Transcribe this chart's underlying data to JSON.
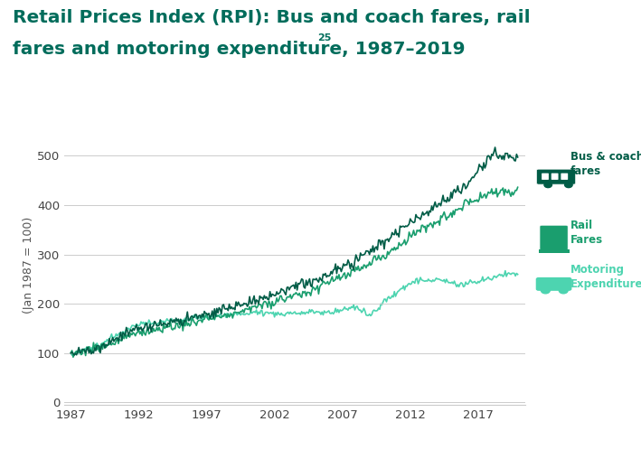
{
  "title_line1": "Retail Prices Index (RPI): Bus and coach fares, rail",
  "title_line2": "fares and motoring expenditure, 1987–2019",
  "title_superscript": "25",
  "title_color": "#006c5b",
  "title_fontsize": 14.5,
  "ylabel": "(Jan 1987 = 100)",
  "ylabel_color": "#555555",
  "ylabel_fontsize": 9,
  "yticks": [
    0,
    100,
    200,
    300,
    400,
    500
  ],
  "xticks": [
    1987,
    1992,
    1997,
    2002,
    2007,
    2012,
    2017
  ],
  "xlim": [
    1986.5,
    2020.5
  ],
  "ylim": [
    -5,
    560
  ],
  "background_color": "#ffffff",
  "grid_color": "#cccccc",
  "bus_color": "#005c46",
  "rail_color": "#1a9e6e",
  "motor_color": "#4dd4b0",
  "label_bus": "Bus & coach\nfares",
  "label_rail": "Rail\nFares",
  "label_motor": "Motoring\nExpenditure",
  "label_color_bus": "#005c46",
  "label_color_rail": "#1a9e6e",
  "label_color_motor": "#4dd4b0",
  "years": [
    1987,
    1988,
    1989,
    1990,
    1991,
    1992,
    1993,
    1994,
    1995,
    1996,
    1997,
    1998,
    1999,
    2000,
    2001,
    2002,
    2003,
    2004,
    2005,
    2006,
    2007,
    2008,
    2009,
    2010,
    2011,
    2012,
    2013,
    2014,
    2015,
    2016,
    2017,
    2018,
    2019
  ],
  "bus_values": [
    100,
    106,
    114,
    125,
    139,
    151,
    156,
    160,
    166,
    173,
    180,
    188,
    195,
    203,
    212,
    219,
    228,
    239,
    250,
    262,
    275,
    291,
    306,
    325,
    343,
    363,
    382,
    400,
    418,
    436,
    468,
    505,
    498
  ],
  "rail_values": [
    100,
    104,
    111,
    121,
    133,
    143,
    148,
    152,
    158,
    164,
    170,
    176,
    182,
    190,
    197,
    204,
    212,
    221,
    231,
    242,
    255,
    269,
    280,
    296,
    315,
    334,
    352,
    368,
    384,
    400,
    412,
    425,
    428
  ],
  "motor_values": [
    100,
    107,
    116,
    131,
    148,
    159,
    160,
    163,
    167,
    170,
    172,
    176,
    178,
    180,
    181,
    180,
    180,
    181,
    183,
    185,
    187,
    194,
    176,
    202,
    224,
    242,
    247,
    249,
    244,
    238,
    245,
    253,
    262
  ]
}
